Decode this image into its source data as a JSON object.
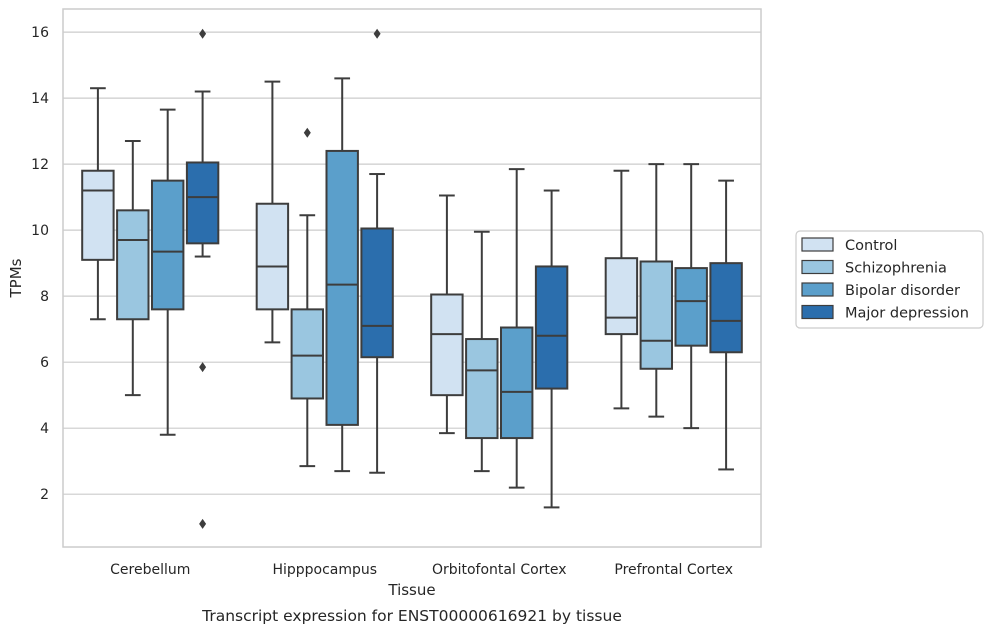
{
  "caption": "Transcript expression for ENST00000616921 by tissue",
  "chart_data": {
    "type": "box",
    "title": "",
    "xlabel": "Tissue",
    "ylabel": "TPMs",
    "ylim": [
      0.4,
      16.7
    ],
    "yticks": [
      2,
      4,
      6,
      8,
      10,
      12,
      14,
      16
    ],
    "grid": "horizontal",
    "legend_position": "right",
    "categories": [
      "Cerebellum",
      "Hipppocampus",
      "Orbitofontal Cortex",
      "Prefrontal Cortex"
    ],
    "series": [
      {
        "name": "Control",
        "color": "#d1e2f2",
        "boxes": [
          {
            "whislo": 7.3,
            "q1": 9.1,
            "med": 11.2,
            "q3": 11.8,
            "whishi": 14.3,
            "fliers": []
          },
          {
            "whislo": 6.6,
            "q1": 7.6,
            "med": 8.9,
            "q3": 10.8,
            "whishi": 14.5,
            "fliers": []
          },
          {
            "whislo": 3.85,
            "q1": 5.0,
            "med": 6.85,
            "q3": 8.05,
            "whishi": 11.05,
            "fliers": []
          },
          {
            "whislo": 4.6,
            "q1": 6.85,
            "med": 7.35,
            "q3": 9.15,
            "whishi": 11.8,
            "fliers": []
          }
        ]
      },
      {
        "name": "Schizophrenia",
        "color": "#9ac6e0",
        "boxes": [
          {
            "whislo": 5.0,
            "q1": 7.3,
            "med": 9.7,
            "q3": 10.6,
            "whishi": 12.7,
            "fliers": []
          },
          {
            "whislo": 2.85,
            "q1": 4.9,
            "med": 6.2,
            "q3": 7.6,
            "whishi": 10.45,
            "fliers": [
              12.95
            ]
          },
          {
            "whislo": 2.7,
            "q1": 3.7,
            "med": 5.75,
            "q3": 6.7,
            "whishi": 9.95,
            "fliers": []
          },
          {
            "whislo": 4.35,
            "q1": 5.8,
            "med": 6.65,
            "q3": 9.05,
            "whishi": 12.0,
            "fliers": []
          }
        ]
      },
      {
        "name": "Bipolar disorder",
        "color": "#5b9fcb",
        "boxes": [
          {
            "whislo": 3.8,
            "q1": 7.6,
            "med": 9.35,
            "q3": 11.5,
            "whishi": 13.65,
            "fliers": []
          },
          {
            "whislo": 2.7,
            "q1": 4.1,
            "med": 8.35,
            "q3": 12.4,
            "whishi": 14.6,
            "fliers": []
          },
          {
            "whislo": 2.2,
            "q1": 3.7,
            "med": 5.1,
            "q3": 7.05,
            "whishi": 11.85,
            "fliers": []
          },
          {
            "whislo": 4.0,
            "q1": 6.5,
            "med": 7.85,
            "q3": 8.85,
            "whishi": 12.0,
            "fliers": []
          }
        ]
      },
      {
        "name": "Major depression",
        "color": "#2b6ead",
        "boxes": [
          {
            "whislo": 9.2,
            "q1": 9.6,
            "med": 11.0,
            "q3": 12.05,
            "whishi": 14.2,
            "fliers": [
              15.95,
              5.85,
              1.1
            ]
          },
          {
            "whislo": 2.65,
            "q1": 6.15,
            "med": 7.1,
            "q3": 10.05,
            "whishi": 11.7,
            "fliers": [
              15.95
            ]
          },
          {
            "whislo": 1.6,
            "q1": 5.2,
            "med": 6.8,
            "q3": 8.9,
            "whishi": 11.2,
            "fliers": []
          },
          {
            "whislo": 2.75,
            "q1": 6.3,
            "med": 7.25,
            "q3": 9.0,
            "whishi": 11.5,
            "fliers": []
          }
        ]
      }
    ]
  }
}
